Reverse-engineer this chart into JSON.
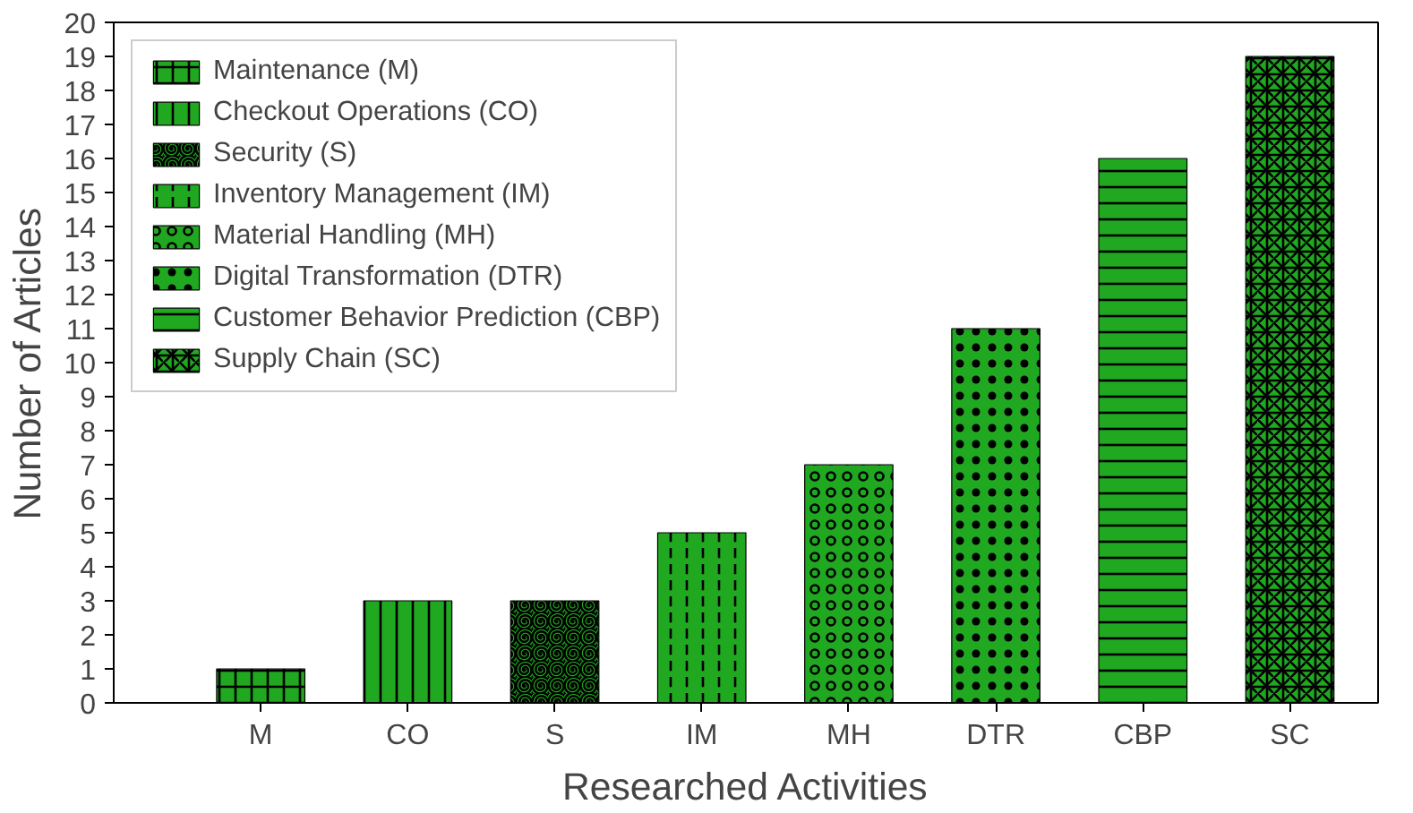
{
  "chart_data": {
    "type": "bar",
    "xlabel": "Researched Activities",
    "ylabel": "Number of Articles",
    "categories": [
      "M",
      "CO",
      "S",
      "IM",
      "MH",
      "DTR",
      "CBP",
      "SC"
    ],
    "series": [
      {
        "name": "Maintenance (M)",
        "color": "#20a820",
        "values": [
          1,
          null,
          null,
          null,
          null,
          null,
          null,
          null
        ]
      },
      {
        "name": "Checkout Operations (CO)",
        "color": "#20a820",
        "values": [
          null,
          3,
          null,
          null,
          null,
          null,
          null,
          null
        ]
      },
      {
        "name": "Security (S)",
        "color": "#20a820",
        "values": [
          null,
          null,
          3,
          null,
          null,
          null,
          null,
          null
        ]
      },
      {
        "name": "Inventory Management (IM)",
        "color": "#20a820",
        "values": [
          null,
          null,
          null,
          5,
          null,
          null,
          null,
          null
        ]
      },
      {
        "name": "Material Handling (MH)",
        "color": "#20a820",
        "values": [
          null,
          null,
          null,
          null,
          7,
          null,
          null,
          null
        ]
      },
      {
        "name": "Digital Transformation (DTR)",
        "color": "#20a820",
        "values": [
          null,
          null,
          null,
          null,
          null,
          11,
          null,
          null
        ]
      },
      {
        "name": "Customer Behavior Prediction (CBP)",
        "color": "#20a820",
        "values": [
          null,
          null,
          null,
          null,
          null,
          null,
          16,
          null
        ]
      },
      {
        "name": "Supply Chain (SC)",
        "color": "#20a820",
        "values": [
          null,
          null,
          null,
          null,
          null,
          null,
          null,
          19
        ]
      }
    ],
    "ylim": [
      0,
      20
    ],
    "yticks": [
      0,
      1,
      2,
      3,
      4,
      5,
      6,
      7,
      8,
      9,
      10,
      11,
      12,
      13,
      14,
      15,
      16,
      17,
      18,
      19,
      20
    ],
    "grid": false,
    "legend": "top left"
  }
}
